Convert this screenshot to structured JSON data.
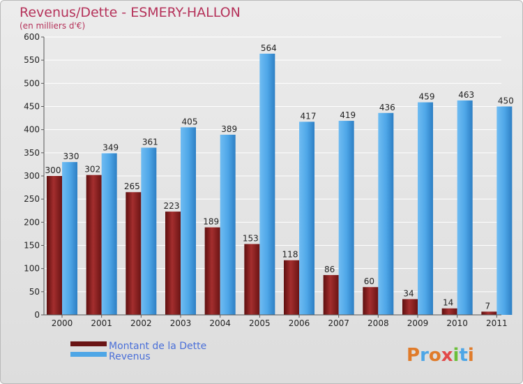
{
  "chart_data": {
    "type": "bar",
    "title": "Revenus/Dette - ESMERY-HALLON",
    "subtitle": "(en milliers d'€)",
    "xlabel": "",
    "ylabel": "",
    "ylim": [
      0,
      600
    ],
    "yticks": [
      0,
      50,
      100,
      150,
      200,
      250,
      300,
      350,
      400,
      450,
      500,
      550,
      600
    ],
    "grid": true,
    "categories": [
      "2000",
      "2001",
      "2002",
      "2003",
      "2004",
      "2005",
      "2006",
      "2007",
      "2008",
      "2009",
      "2010",
      "2011"
    ],
    "series": [
      {
        "name": "Montant de la Dette",
        "color": "#8b1c1c",
        "values": [
          300,
          302,
          265,
          223,
          189,
          153,
          118,
          86,
          60,
          34,
          14,
          7
        ]
      },
      {
        "name": "Revenus",
        "color": "#4ea6e6",
        "values": [
          330,
          349,
          361,
          405,
          389,
          564,
          417,
          419,
          436,
          459,
          463,
          450
        ]
      }
    ],
    "legend_position": "bottom-left"
  },
  "logo": {
    "text": "Proxiti",
    "letters": [
      {
        "ch": "P",
        "color": "#e07b2a"
      },
      {
        "ch": "r",
        "color": "#4ea6e6"
      },
      {
        "ch": "o",
        "color": "#e07b2a"
      },
      {
        "ch": "x",
        "color": "#e24a4a"
      },
      {
        "ch": "i",
        "color": "#6bbf3a"
      },
      {
        "ch": "t",
        "color": "#4ea6e6"
      },
      {
        "ch": "i",
        "color": "#e07b2a"
      }
    ]
  }
}
